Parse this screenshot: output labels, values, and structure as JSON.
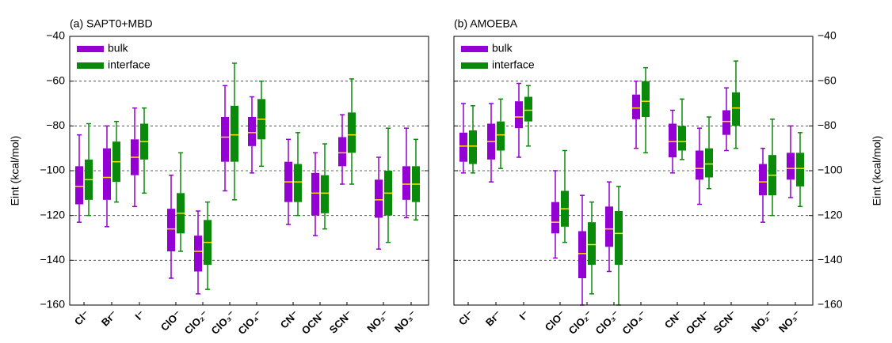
{
  "chart_data": [
    {
      "type": "box",
      "title": "(a) SAPT0+MBD",
      "ylabel": "Eint (kcal/mol)",
      "yaxis_side": "left",
      "categories": [
        "Cl⁻",
        "Br⁻",
        "I⁻",
        "ClO⁻",
        "ClO₂⁻",
        "ClO₃⁻",
        "ClO₄⁻",
        "CN⁻",
        "OCN⁻",
        "SCN⁻",
        "NO₂⁻",
        "NO₃⁻"
      ],
      "ylim": [
        -160,
        -40
      ],
      "yticks": [
        {
          "value": -160,
          "label": "−160"
        },
        {
          "value": -140,
          "label": "−140"
        },
        {
          "value": -120,
          "label": "−120"
        },
        {
          "value": -100,
          "label": "−100"
        },
        {
          "value": -80,
          "label": "−80"
        },
        {
          "value": -60,
          "label": "−60"
        },
        {
          "value": -40,
          "label": "−40"
        }
      ],
      "grid": true,
      "legend": "upper left",
      "median_color": "#ffe400",
      "series": [
        {
          "name": "bulk",
          "color": "#9400d3",
          "low": [
            -123,
            -125,
            -116,
            -148,
            -155,
            -109,
            -101,
            -124,
            -129,
            -106,
            -135,
            -121
          ],
          "q1": [
            -115,
            -113,
            -102,
            -136,
            -145,
            -96,
            -89,
            -114,
            -120,
            -98,
            -121,
            -113
          ],
          "median": [
            -107,
            -103,
            -94,
            -126,
            -136,
            -85,
            -83,
            -105,
            -110,
            -92,
            -113,
            -106
          ],
          "q3": [
            -98,
            -90,
            -86,
            -117,
            -129,
            -76,
            -76,
            -96,
            -101,
            -85,
            -104,
            -98
          ],
          "high": [
            -84,
            -80,
            -72,
            -102,
            -118,
            -62,
            -67,
            -86,
            -92,
            -75,
            -94,
            -81
          ]
        },
        {
          "name": "interface",
          "color": "#0a8a0a",
          "low": [
            -120,
            -114,
            -110,
            -136,
            -153,
            -113,
            -98,
            -120,
            -126,
            -106,
            -132,
            -122
          ],
          "q1": [
            -113,
            -105,
            -95,
            -128,
            -142,
            -96,
            -86,
            -114,
            -119,
            -92,
            -120,
            -114
          ],
          "median": [
            -104,
            -96,
            -87,
            -119,
            -132,
            -84,
            -77,
            -105,
            -110,
            -84,
            -110,
            -106
          ],
          "q3": [
            -95,
            -87,
            -79,
            -110,
            -122,
            -71,
            -68,
            -97,
            -102,
            -74,
            -100,
            -98
          ],
          "high": [
            -79,
            -78,
            -72,
            -92,
            -114,
            -52,
            -60,
            -83,
            -88,
            -59,
            -81,
            -86
          ]
        }
      ]
    },
    {
      "type": "box",
      "title": "(b) AMOEBA",
      "ylabel": "Eint (kcal/mol)",
      "yaxis_side": "right",
      "categories": [
        "Cl⁻",
        "Br⁻",
        "I⁻",
        "ClO⁻",
        "ClO₂⁻",
        "ClO₃⁻",
        "ClO₄⁻",
        "CN⁻",
        "OCN⁻",
        "SCN⁻",
        "NO₂⁻",
        "NO₃⁻"
      ],
      "ylim": [
        -160,
        -40
      ],
      "yticks": [
        {
          "value": -160,
          "label": "−160"
        },
        {
          "value": -140,
          "label": "−140"
        },
        {
          "value": -120,
          "label": "−120"
        },
        {
          "value": -100,
          "label": "−100"
        },
        {
          "value": -80,
          "label": "−80"
        },
        {
          "value": -60,
          "label": "−60"
        },
        {
          "value": -40,
          "label": "−40"
        }
      ],
      "grid": true,
      "legend": "upper left",
      "median_color": "#ffe400",
      "series": [
        {
          "name": "bulk",
          "color": "#9400d3",
          "low": [
            -101,
            -105,
            -94,
            -139,
            -160,
            -145,
            -90,
            -101,
            -115,
            -91,
            -123,
            -112
          ],
          "q1": [
            -96,
            -95,
            -81,
            -128,
            -148,
            -134,
            -77,
            -94,
            -104,
            -84,
            -111,
            -104
          ],
          "median": [
            -89,
            -87,
            -76,
            -123,
            -137,
            -126,
            -72,
            -87,
            -99,
            -78,
            -105,
            -99
          ],
          "q3": [
            -83,
            -79,
            -69,
            -114,
            -127,
            -116,
            -66,
            -79,
            -91,
            -73,
            -97,
            -92
          ],
          "high": [
            -70,
            -70,
            -61,
            -100,
            -111,
            -105,
            -60,
            -73,
            -81,
            -63,
            -90,
            -80
          ]
        },
        {
          "name": "interface",
          "color": "#0a8a0a",
          "low": [
            -101,
            -99,
            -89,
            -132,
            -155,
            -160,
            -92,
            -95,
            -108,
            -90,
            -120,
            -116
          ],
          "q1": [
            -97,
            -91,
            -78,
            -125,
            -142,
            -142,
            -76,
            -91,
            -103,
            -80,
            -111,
            -107
          ],
          "median": [
            -89,
            -84,
            -73,
            -117,
            -133,
            -128,
            -69,
            -87,
            -97,
            -72,
            -102,
            -99
          ],
          "q3": [
            -82,
            -78,
            -67,
            -109,
            -123,
            -118,
            -60,
            -80,
            -90,
            -65,
            -93,
            -92
          ],
          "high": [
            -71,
            -68,
            -62,
            -91,
            -114,
            -107,
            -54,
            -68,
            -76,
            -51,
            -77,
            -83
          ]
        }
      ]
    }
  ]
}
